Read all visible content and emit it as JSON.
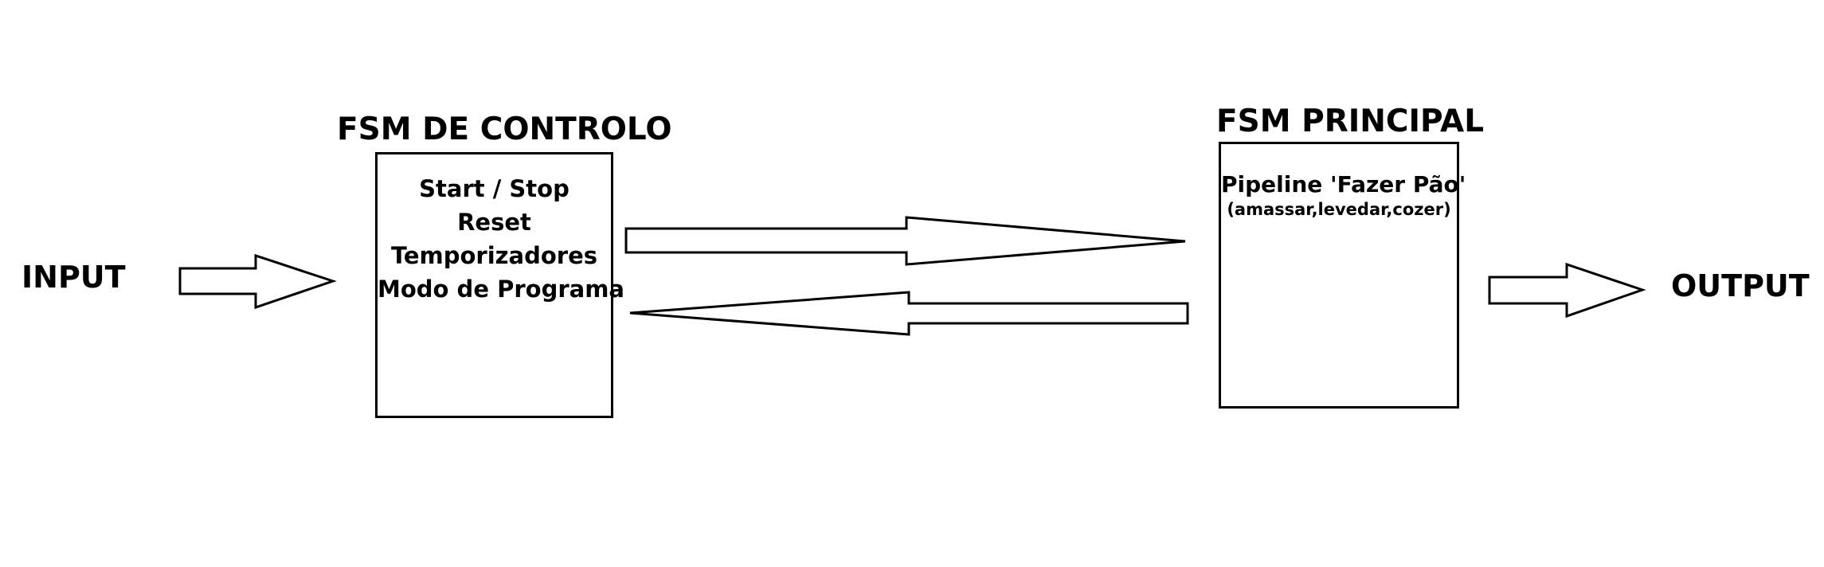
{
  "input_label": "INPUT",
  "output_label": "OUTPUT",
  "control_fsm": {
    "title": "FSM DE CONTROLO",
    "lines": [
      "Start / Stop",
      "Reset",
      "Temporizadores",
      "Modo de Programa"
    ]
  },
  "main_fsm": {
    "title": "FSM PRINCIPAL",
    "subtitle": "Pipeline 'Fazer Pão'",
    "detail": "(amassar,levedar,cozer)"
  },
  "colors": {
    "stroke": "#000000",
    "background": "#ffffff"
  }
}
